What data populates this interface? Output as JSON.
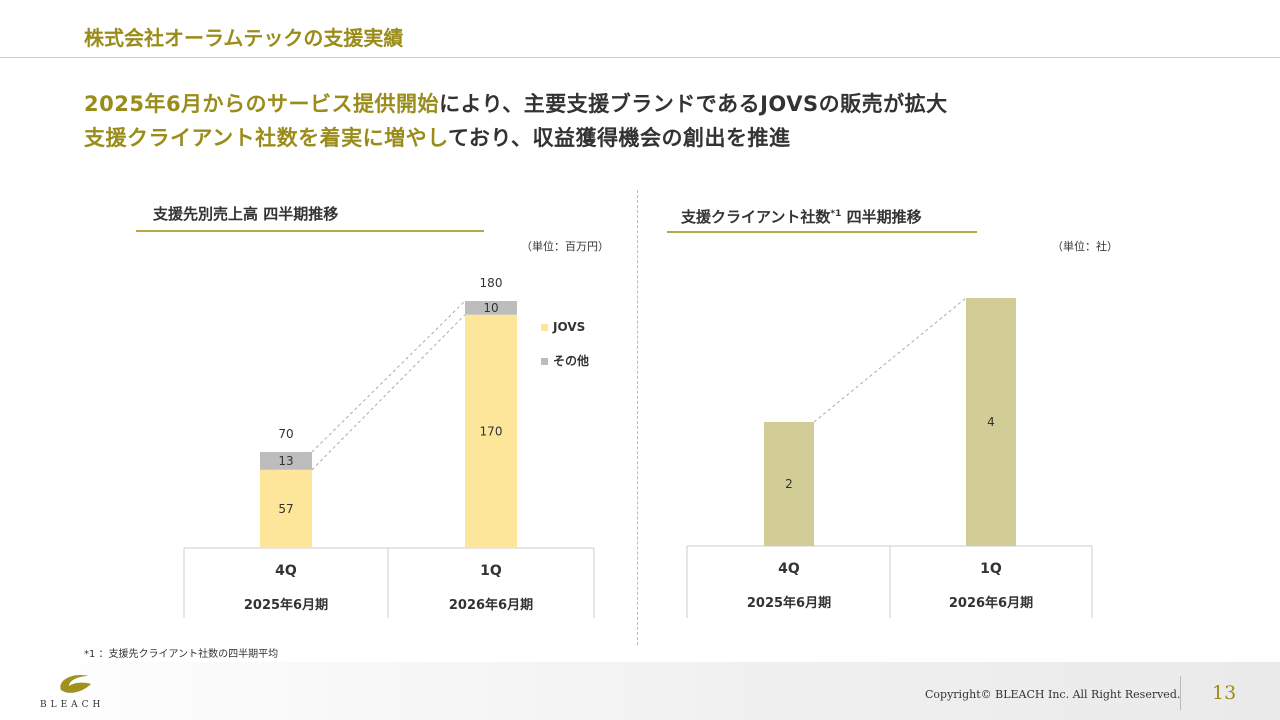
{
  "header": {
    "title": "株式会社オーラムテックの支援実績"
  },
  "headline": {
    "line1_highlight": "2025年6月からのサービス提供開始",
    "line1_rest": "により、主要支援ブランドであるJOVSの販売が拡大",
    "line2_highlight": "支援クライアント社数を着実に増やし",
    "line2_rest": "ており、収益獲得機会の創出を推進"
  },
  "left_chart": {
    "title": "支援先別売上高 四半期推移",
    "unit": "（単位：百万円）",
    "legend": [
      {
        "label": "JOVS",
        "color": "#fde59a"
      },
      {
        "label": "その他",
        "color": "#bdbdbd"
      }
    ]
  },
  "right_chart": {
    "title_main": "支援クライアント社数",
    "title_sup": "*1",
    "title_tail": " 四半期推移",
    "unit": "（単位：社）"
  },
  "chart_data": [
    {
      "type": "bar",
      "stacked": true,
      "title": "支援先別売上高 四半期推移",
      "unit": "（単位：百万円）",
      "categories": [
        "4Q",
        "1Q"
      ],
      "category_periods": [
        "2025年6月期",
        "2026年6月期"
      ],
      "series": [
        {
          "name": "JOVS",
          "values": [
            57,
            170
          ],
          "color": "#fde59a"
        },
        {
          "name": "その他",
          "values": [
            13,
            10
          ],
          "color": "#bdbdbd"
        }
      ],
      "totals": [
        70,
        180
      ],
      "ylim": [
        0,
        180
      ]
    },
    {
      "type": "bar",
      "title": "支援クライアント社数*1 四半期推移",
      "unit": "（単位：社）",
      "categories": [
        "4Q",
        "1Q"
      ],
      "category_periods": [
        "2025年6月期",
        "2026年6月期"
      ],
      "values": [
        2,
        4
      ],
      "color": "#d2cc96",
      "ylim": [
        0,
        4
      ]
    }
  ],
  "footnote": "*1 ：支援先クライアント社数の四半期平均",
  "footer": {
    "logo_text": "BLEACH",
    "copyright": "Copyright© BLEACH Inc. All Right Reserved.",
    "page_number": "13"
  }
}
